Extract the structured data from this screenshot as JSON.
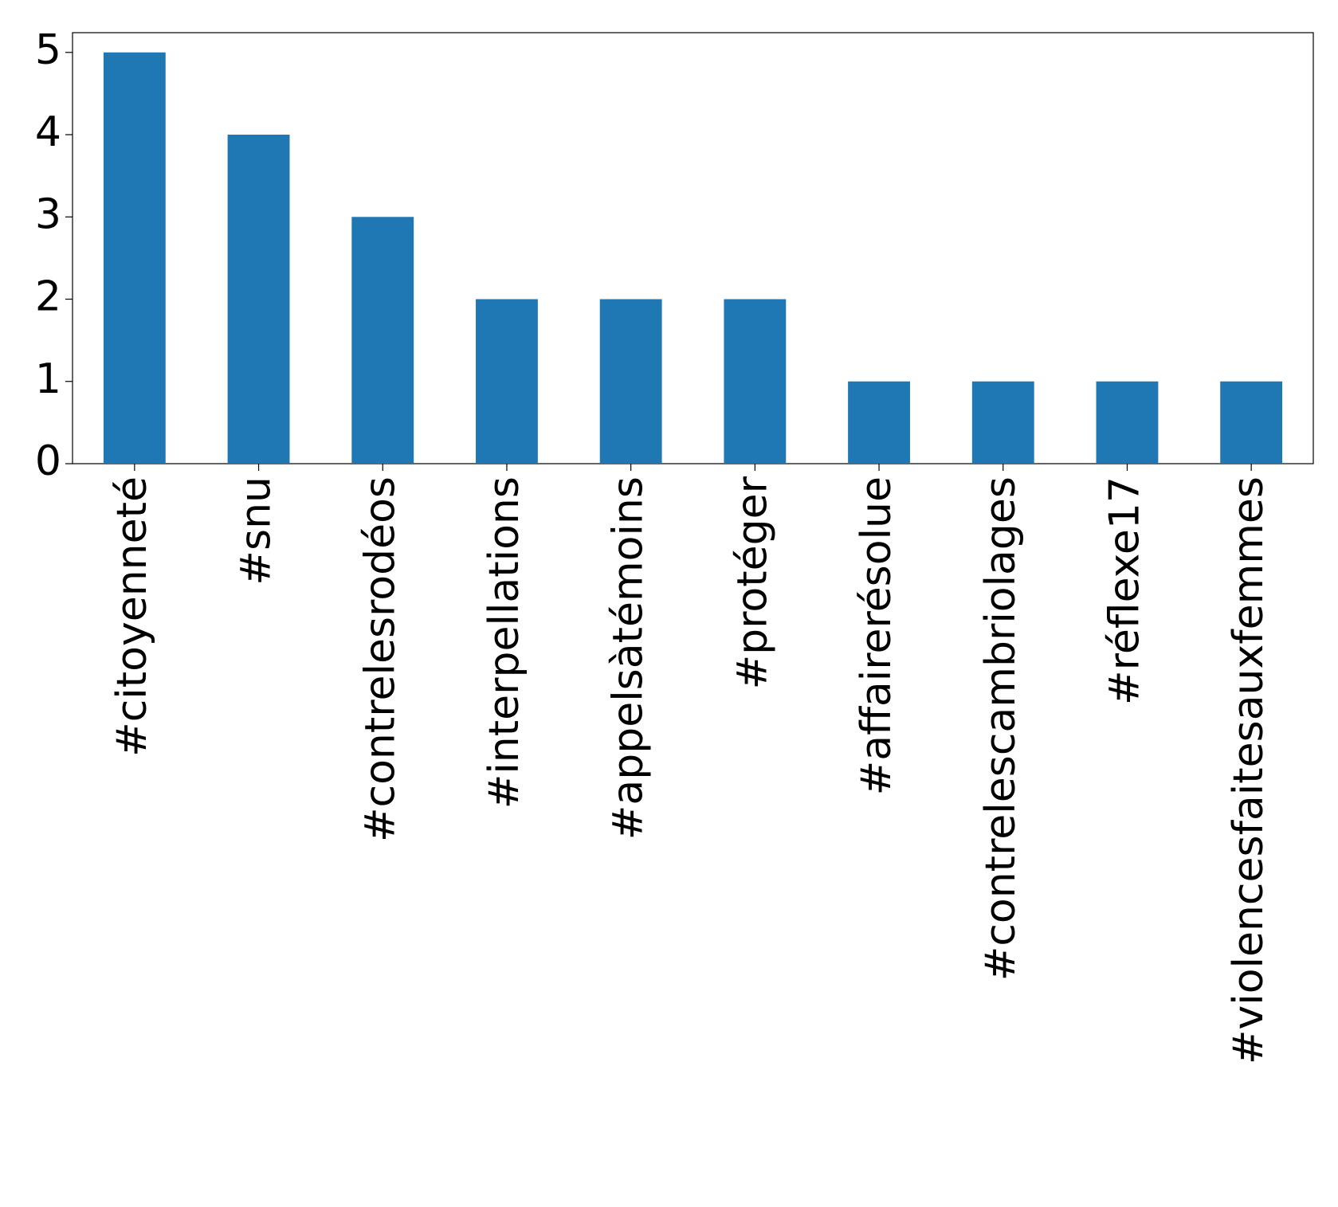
{
  "chart_data": {
    "type": "bar",
    "categories": [
      "#citoyenneté",
      "#snu",
      "#contrelesrodéos",
      "#interpellations",
      "#appelsàtémoins",
      "#protéger",
      "#affairerésolue",
      "#contrelescambriolages",
      "#réflexe17",
      "#violencesfaitesauxfemmes"
    ],
    "values": [
      5,
      4,
      3,
      2,
      2,
      2,
      1,
      1,
      1,
      1
    ],
    "color": "#1f77b4",
    "ylim": [
      0,
      5.24
    ],
    "yticks": [
      0,
      1,
      2,
      3,
      4,
      5
    ],
    "grid": false
  }
}
